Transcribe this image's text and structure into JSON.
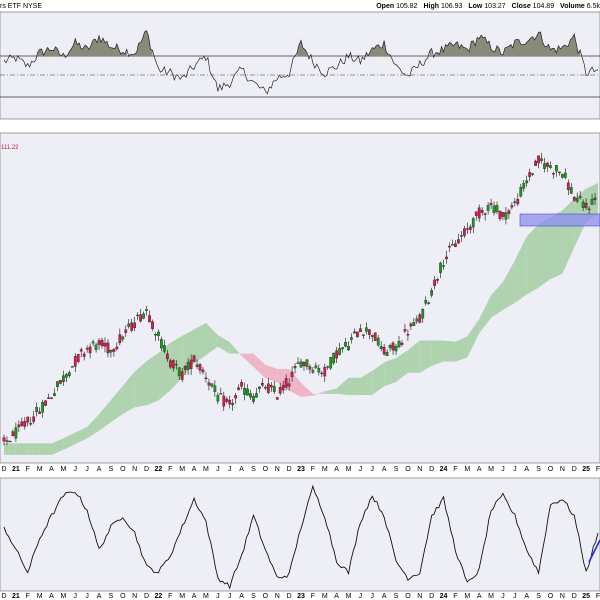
{
  "header": {
    "title_fragment": "rs ETF  NYSE",
    "open_label": "Open",
    "open": "105.82",
    "high_label": "High",
    "high": "106.93",
    "low_label": "Low",
    "low": "103.27",
    "close_label": "Close",
    "close": "104.89",
    "volume_label": "Volume",
    "volume": "6.5k"
  },
  "price_note": "111.22",
  "colors": {
    "panel_bg": "#eeeff6",
    "candle_up": "#1a9a1a",
    "candle_down": "#d61a4a",
    "cloud_bull": "#aed3ae",
    "cloud_bear": "#efb6c8",
    "highlight_zone": "#8c8cf0",
    "trendline": "#1e2dd2"
  },
  "x_axis": {
    "labels": [
      "D",
      "21",
      "F",
      "M",
      "A",
      "M",
      "J",
      "J",
      "A",
      "S",
      "O",
      "N",
      "D",
      "22",
      "F",
      "M",
      "A",
      "M",
      "J",
      "J",
      "A",
      "S",
      "O",
      "N",
      "D",
      "23",
      "F",
      "M",
      "A",
      "M",
      "J",
      "J",
      "A",
      "S",
      "O",
      "N",
      "D",
      "24",
      "F",
      "M",
      "A",
      "M",
      "J",
      "J",
      "A",
      "S",
      "O",
      "N",
      "D",
      "25",
      "F"
    ],
    "year_labels": [
      "21",
      "22",
      "23",
      "24",
      "25"
    ]
  },
  "chart_data": [
    {
      "type": "line",
      "title": "",
      "description_role": "RSI indicator panel (top)",
      "grid": true,
      "reference_lines_shown": 3,
      "x": [
        "2020-12",
        "2021-01",
        "2021-02",
        "2021-03",
        "2021-04",
        "2021-05",
        "2021-06",
        "2021-07",
        "2021-08",
        "2021-09",
        "2021-10",
        "2021-11",
        "2021-12",
        "2022-01",
        "2022-02",
        "2022-03",
        "2022-04",
        "2022-05",
        "2022-06",
        "2022-07",
        "2022-08",
        "2022-09",
        "2022-10",
        "2022-11",
        "2022-12",
        "2023-01",
        "2023-02",
        "2023-03",
        "2023-04",
        "2023-05",
        "2023-06",
        "2023-07",
        "2023-08",
        "2023-09",
        "2023-10",
        "2023-11",
        "2023-12",
        "2024-01",
        "2024-02",
        "2024-03",
        "2024-04",
        "2024-05",
        "2024-06",
        "2024-07",
        "2024-08",
        "2024-09",
        "2024-10",
        "2024-11",
        "2024-12",
        "2025-01",
        "2025-02"
      ],
      "series": [
        {
          "values": [
            55,
            57,
            52,
            60,
            63,
            58,
            66,
            62,
            70,
            64,
            62,
            60,
            73,
            50,
            48,
            44,
            52,
            58,
            38,
            42,
            50,
            42,
            36,
            45,
            48,
            66,
            55,
            48,
            52,
            58,
            55,
            62,
            66,
            52,
            46,
            53,
            60,
            62,
            65,
            62,
            70,
            64,
            60,
            66,
            68,
            72,
            62,
            63,
            70,
            48,
            50
          ]
        }
      ]
    },
    {
      "type": "line",
      "title": "",
      "description_role": "Price candlesticks with Ichimoku cloud",
      "grid": true,
      "x": [
        "2020-12",
        "2021-01",
        "2021-02",
        "2021-03",
        "2021-04",
        "2021-05",
        "2021-06",
        "2021-07",
        "2021-08",
        "2021-09",
        "2021-10",
        "2021-11",
        "2021-12",
        "2022-01",
        "2022-02",
        "2022-03",
        "2022-04",
        "2022-05",
        "2022-06",
        "2022-07",
        "2022-08",
        "2022-09",
        "2022-10",
        "2022-11",
        "2022-12",
        "2023-01",
        "2023-02",
        "2023-03",
        "2023-04",
        "2023-05",
        "2023-06",
        "2023-07",
        "2023-08",
        "2023-09",
        "2023-10",
        "2023-11",
        "2023-12",
        "2024-01",
        "2024-02",
        "2024-03",
        "2024-04",
        "2024-05",
        "2024-06",
        "2024-07",
        "2024-08",
        "2024-09",
        "2024-10",
        "2024-11",
        "2024-12",
        "2025-01",
        "2025-02"
      ],
      "series": [
        {
          "name": "",
          "values": [
            73.6,
            74.9,
            76.4,
            77.9,
            79.9,
            82.1,
            84.3,
            86.0,
            86.5,
            85.8,
            87.6,
            89.4,
            91.1,
            87.5,
            84.3,
            82.5,
            84.6,
            82.5,
            79.6,
            78.5,
            80.8,
            79.7,
            81.1,
            80.0,
            81.8,
            84.3,
            83.6,
            82.9,
            85.4,
            86.5,
            88.6,
            88.0,
            85.4,
            86.1,
            88.3,
            89.7,
            93.5,
            97.5,
            99.6,
            101.4,
            103.6,
            104.7,
            103.2,
            104.7,
            107.8,
            110.4,
            109.6,
            108.9,
            105.7,
            104.3,
            105.8
          ]
        }
      ]
    },
    {
      "type": "line",
      "title": "",
      "description_role": "Oscillator panel (bottom)",
      "x": [
        "2020-12",
        "2021-01",
        "2021-02",
        "2021-03",
        "2021-04",
        "2021-05",
        "2021-06",
        "2021-07",
        "2021-08",
        "2021-09",
        "2021-10",
        "2021-11",
        "2021-12",
        "2022-01",
        "2022-02",
        "2022-03",
        "2022-04",
        "2022-05",
        "2022-06",
        "2022-07",
        "2022-08",
        "2022-09",
        "2022-10",
        "2022-11",
        "2022-12",
        "2023-01",
        "2023-02",
        "2023-03",
        "2023-04",
        "2023-05",
        "2023-06",
        "2023-07",
        "2023-08",
        "2023-09",
        "2023-10",
        "2023-11",
        "2023-12",
        "2024-01",
        "2024-02",
        "2024-03",
        "2024-04",
        "2024-05",
        "2024-06",
        "2024-07",
        "2024-08",
        "2024-09",
        "2024-10",
        "2024-11",
        "2024-12",
        "2025-01",
        "2025-02"
      ],
      "series": [
        {
          "values": [
            60,
            40,
            20,
            50,
            70,
            88,
            92,
            75,
            40,
            60,
            70,
            55,
            25,
            20,
            35,
            60,
            85,
            65,
            15,
            8,
            35,
            70,
            40,
            15,
            18,
            60,
            95,
            70,
            30,
            20,
            65,
            88,
            70,
            30,
            15,
            20,
            70,
            85,
            40,
            10,
            22,
            75,
            88,
            70,
            40,
            20,
            80,
            85,
            70,
            20,
            55
          ]
        }
      ]
    }
  ]
}
